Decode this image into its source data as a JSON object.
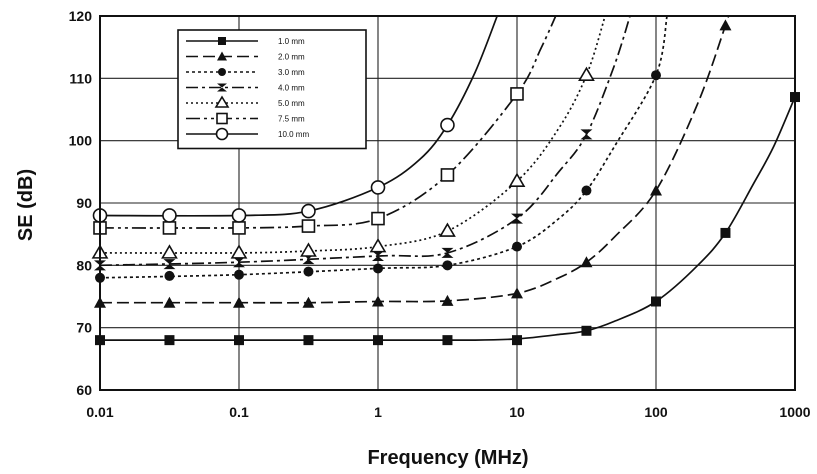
{
  "chart_data": {
    "type": "line",
    "xlabel": "Frequency (MHz)",
    "ylabel": "SE (dB)",
    "xscale": "log",
    "xlim": [
      0.01,
      1000
    ],
    "ylim": [
      60,
      120
    ],
    "grid": true,
    "legend_position": "top-left",
    "x_ticks": [
      "0.01",
      "0.1",
      "1",
      "10",
      "100",
      "1000"
    ],
    "y_ticks": [
      "60",
      "70",
      "80",
      "90",
      "100",
      "110",
      "120"
    ],
    "series": [
      {
        "name": "1.0 mm",
        "marker": "square-filled",
        "dash": "",
        "marker_x": [
          0.01,
          0.0316,
          0.1,
          0.316,
          1,
          3.16,
          10,
          31.6,
          100,
          316,
          1000
        ],
        "marker_y": [
          68,
          68,
          68,
          68,
          68,
          68,
          68,
          69.5,
          74.2,
          85.2,
          107
        ],
        "curve_x": [
          0.01,
          0.1,
          1,
          5,
          10,
          20,
          31.6,
          50,
          100,
          200,
          316,
          500,
          700,
          1000
        ],
        "curve_y": [
          68,
          68,
          68,
          68,
          68.2,
          68.9,
          69.5,
          71,
          74.2,
          80,
          85.2,
          93,
          99,
          107
        ]
      },
      {
        "name": "2.0 mm",
        "marker": "triangle-filled",
        "dash": "12,5",
        "marker_x": [
          0.01,
          0.0316,
          0.1,
          0.316,
          1,
          3.16,
          10,
          31.6,
          100,
          316
        ],
        "marker_y": [
          74,
          74,
          74,
          74,
          74.2,
          74.3,
          75.5,
          80.5,
          92,
          118.5
        ],
        "curve_x": [
          0.01,
          0.1,
          0.316,
          1,
          3.16,
          10,
          20,
          31.6,
          50,
          100,
          200,
          316,
          330
        ],
        "curve_y": [
          74,
          74,
          74,
          74.2,
          74.3,
          75.5,
          78,
          80.5,
          84.5,
          92,
          106,
          118.5,
          120
        ]
      },
      {
        "name": "3.0 mm",
        "marker": "circle-filled",
        "dash": "3,3",
        "marker_x": [
          0.01,
          0.0316,
          0.1,
          0.316,
          1,
          3.16,
          10,
          31.6,
          100
        ],
        "marker_y": [
          78,
          78.3,
          78.5,
          79,
          79.5,
          80,
          83,
          92,
          110.5
        ],
        "curve_x": [
          0.01,
          0.1,
          1,
          3.16,
          10,
          20,
          31.6,
          50,
          100,
          120
        ],
        "curve_y": [
          78,
          78.5,
          79.5,
          80,
          83,
          87.5,
          92,
          99,
          110.5,
          120
        ]
      },
      {
        "name": "4.0 mm",
        "marker": "hourglass",
        "dash": "12,4,3,4",
        "marker_x": [
          0.01,
          0.0316,
          0.1,
          0.316,
          1,
          3.16,
          10,
          31.6
        ],
        "marker_y": [
          80,
          80.2,
          80.5,
          81,
          81.5,
          82,
          87.5,
          101
        ],
        "curve_x": [
          0.01,
          0.1,
          1,
          3.16,
          10,
          20,
          31.6,
          50,
          65
        ],
        "curve_y": [
          80,
          80.5,
          81.5,
          82,
          87.5,
          95,
          101,
          112,
          120
        ]
      },
      {
        "name": "5.0 mm",
        "marker": "triangle-open",
        "dash": "2,3",
        "marker_x": [
          0.01,
          0.0316,
          0.1,
          0.316,
          1,
          3.16,
          10,
          31.6
        ],
        "marker_y": [
          82,
          82,
          82,
          82.3,
          83,
          85.5,
          93.5,
          110.5
        ],
        "curve_x": [
          0.01,
          0.1,
          0.316,
          1,
          3.16,
          10,
          20,
          31.6,
          43
        ],
        "curve_y": [
          82,
          82,
          82.3,
          83,
          85.5,
          93.5,
          102,
          110.5,
          120
        ]
      },
      {
        "name": "7.5 mm",
        "marker": "square-open",
        "dash": "14,4,3,4,3,4",
        "marker_x": [
          0.01,
          0.0316,
          0.1,
          0.316,
          1,
          3.16,
          10
        ],
        "marker_y": [
          86,
          86,
          86,
          86.3,
          87.5,
          94.5,
          107.5
        ],
        "curve_x": [
          0.01,
          0.1,
          0.316,
          1,
          3.16,
          10,
          15,
          19
        ],
        "curve_y": [
          86,
          86,
          86.3,
          87.5,
          94.5,
          107.5,
          115,
          120
        ]
      },
      {
        "name": "10.0 mm",
        "marker": "circle-open",
        "dash": "",
        "marker_x": [
          0.01,
          0.0316,
          0.1,
          0.316,
          1,
          3.16
        ],
        "marker_y": [
          88,
          88,
          88,
          88.7,
          92.5,
          102.5
        ],
        "curve_x": [
          0.01,
          0.1,
          0.316,
          1,
          2,
          3.16,
          5,
          7.2
        ],
        "curve_y": [
          88,
          88,
          88.7,
          92.5,
          97,
          102.5,
          111,
          120
        ]
      }
    ]
  }
}
